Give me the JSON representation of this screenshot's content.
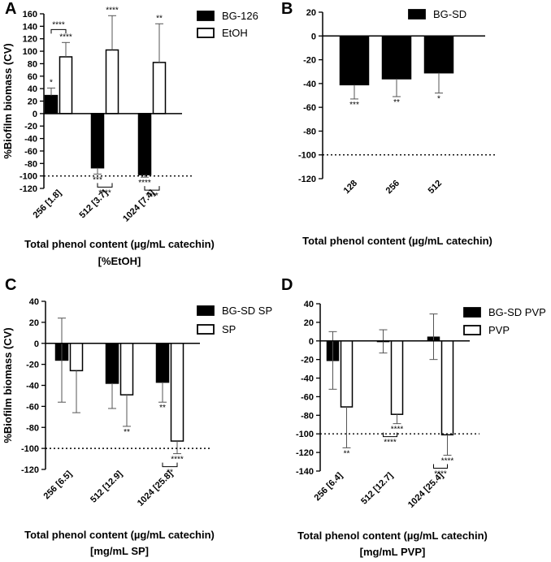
{
  "figure": {
    "panels": [
      {
        "letter": "A"
      },
      {
        "letter": "B"
      },
      {
        "letter": "C"
      },
      {
        "letter": "D"
      }
    ]
  },
  "chart_data": [
    {
      "panel": "A",
      "type": "bar",
      "ylabel": "%Biofilm biomass (CV)",
      "xlabel": [
        "Total phenol content (µg/mL catechin)",
        "[%EtOH]"
      ],
      "categories": [
        "256 [1.8]",
        "512 [3.7]",
        "1024 [7.4]"
      ],
      "ylim": [
        -120,
        160
      ],
      "yticks": [
        -120,
        -100,
        -80,
        -60,
        -40,
        -20,
        0,
        20,
        40,
        60,
        80,
        100,
        120,
        140,
        160
      ],
      "reference_line": -100,
      "series": [
        {
          "name": "BG-126",
          "fill": "black",
          "values": [
            29,
            -87,
            -98
          ],
          "err_up": [
            12,
            0,
            0
          ],
          "err_down": [
            0,
            10,
            4
          ],
          "sig": [
            "*",
            "***",
            "****"
          ]
        },
        {
          "name": "EtOH",
          "fill": "white",
          "values": [
            91,
            102,
            82
          ],
          "err_up": [
            23,
            55,
            62
          ],
          "err_down": [
            0,
            0,
            0
          ],
          "sig": [
            "****",
            "****",
            "**"
          ]
        }
      ],
      "brackets": [
        {
          "category": 0,
          "label": "****"
        },
        {
          "category": 1,
          "label": "****"
        },
        {
          "category": 2,
          "label": "****"
        }
      ],
      "legend_position": "top-right"
    },
    {
      "panel": "B",
      "type": "bar",
      "ylabel": "",
      "xlabel": [
        "Total phenol content (µg/mL catechin)"
      ],
      "categories": [
        "128",
        "256",
        "512"
      ],
      "ylim": [
        -120,
        20
      ],
      "yticks": [
        -120,
        -100,
        -80,
        -60,
        -40,
        -20,
        0,
        20
      ],
      "reference_line": -100,
      "series": [
        {
          "name": "BG-SD",
          "fill": "black",
          "values": [
            -41,
            -36,
            -31
          ],
          "err_up": [
            0,
            0,
            0
          ],
          "err_down": [
            12,
            15,
            17
          ],
          "sig": [
            "***",
            "**",
            "*"
          ]
        }
      ],
      "brackets": [],
      "legend_position": "top-right"
    },
    {
      "panel": "C",
      "type": "bar",
      "ylabel": "%Biofilm biomass (CV)",
      "xlabel": [
        "Total phenol content (µg/mL catechin)",
        "[mg/mL SP]"
      ],
      "categories": [
        "256 [6.5]",
        "512 [12.9]",
        "1024 [25.8]"
      ],
      "ylim": [
        -120,
        40
      ],
      "yticks": [
        -120,
        -100,
        -80,
        -60,
        -40,
        -20,
        0,
        20,
        40
      ],
      "reference_line": -100,
      "series": [
        {
          "name": "BG-SD SP",
          "fill": "black",
          "values": [
            -16,
            -38,
            -37
          ],
          "err_up": [
            40,
            0,
            0
          ],
          "err_down": [
            40,
            24,
            19
          ],
          "sig": [
            "",
            "",
            "**"
          ]
        },
        {
          "name": "SP",
          "fill": "white",
          "values": [
            -26,
            -49,
            -93
          ],
          "err_up": [
            0,
            0,
            0
          ],
          "err_down": [
            40,
            30,
            12
          ],
          "sig": [
            "",
            "**",
            "****"
          ]
        }
      ],
      "brackets": [
        {
          "category": 2,
          "label": "**"
        }
      ],
      "legend_position": "top-right"
    },
    {
      "panel": "D",
      "type": "bar",
      "ylabel": "",
      "xlabel": [
        "Total phenol content (µg/mL catechin)",
        "[mg/mL PVP]"
      ],
      "categories": [
        "256 [6.4]",
        "512 [12.7]",
        "1024 [25.4]"
      ],
      "ylim": [
        -140,
        40
      ],
      "yticks": [
        -140,
        -120,
        -100,
        -80,
        -60,
        -40,
        -20,
        0,
        20,
        40
      ],
      "reference_line": -100,
      "series": [
        {
          "name": "BG-SD PVP",
          "fill": "black",
          "values": [
            -21,
            0,
            4
          ],
          "err_up": [
            31,
            12,
            25
          ],
          "err_down": [
            31,
            13,
            24
          ],
          "sig": [
            "",
            "",
            ""
          ]
        },
        {
          "name": "PVP",
          "fill": "white",
          "values": [
            -71,
            -79,
            -101
          ],
          "err_up": [
            0,
            0,
            0
          ],
          "err_down": [
            44,
            10,
            22
          ],
          "sig": [
            "**",
            "****",
            "****"
          ]
        }
      ],
      "brackets": [
        {
          "category": 1,
          "label": "****"
        },
        {
          "category": 2,
          "label": "****"
        }
      ],
      "legend_position": "top-right"
    }
  ]
}
